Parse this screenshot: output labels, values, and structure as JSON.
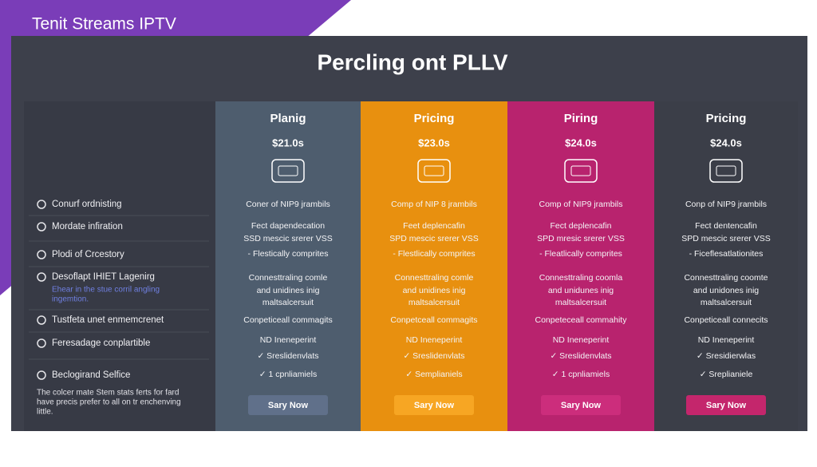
{
  "brand": "Tenit Streams IPTV",
  "title": "Percling ont PLLV",
  "features": [
    {
      "label": "Conurf ordnisting"
    },
    {
      "label": "Mordate infiration"
    },
    {
      "label": "Plodi of Crcestory"
    },
    {
      "label": "Desoflapt IHIET Lagenirg",
      "note": [
        "Ehear in the stue corril angling",
        "ingemtion."
      ]
    },
    {
      "label": "Tustfeta unet enmemcrenet"
    },
    {
      "label": "Feresadage conplartible"
    },
    {
      "label": "Beclogirand Selfice",
      "note": [
        "The colcer mate Stem stats ferts for fard",
        "have precis prefer to all on tr enchenving",
        "little."
      ]
    }
  ],
  "plans": [
    {
      "name": "Planig",
      "price": "$21.0s",
      "lines": [
        "Coner of NIP9 jrambils",
        "Fect dapendecation",
        "SSD mescic srerer VSS",
        "- Flestically comprites",
        "Connesttraling comle",
        "and unidines inig",
        "maltsalcersuit",
        "Conpeticeall commagits",
        "ND Ineneperint",
        "✓ Sreslidenvlats",
        "✓ 1 cpnliamiels"
      ],
      "button": "Sary Now"
    },
    {
      "name": "Pricing",
      "price": "$23.0s",
      "lines": [
        "Comp of NIP 8 jrambils",
        "Feet deplencafin",
        "SPD mescic srerer VSS",
        "- Flestlically comprites",
        "Connesttraling comle",
        "and unidines inig",
        "maltsalcersuit",
        "Conpetceall commagits",
        "ND Ineneperint",
        "✓ Sreslidenvlats",
        "✓ Semplianiels"
      ],
      "button": "Sary Now"
    },
    {
      "name": "Piring",
      "price": "$24.0s",
      "lines": [
        "Comp of NIP9 jrambils",
        "Fect deplencafin",
        "SPD mresic srerer VSS",
        "- Fleatlically comprites",
        "Connesttraling coomla",
        "and unidunes inig",
        "maltsalcersuit",
        "Conpeteceall commahity",
        "ND Ineneperint",
        "✓ Sreslidenvlats",
        "✓ 1 cpnliamiels"
      ],
      "button": "Sary Now"
    },
    {
      "name": "Pricing",
      "price": "$24.0s",
      "lines": [
        "Conp of NIP9 jrambils",
        "Fect dentencafin",
        "SPD mescic srerer VSS",
        "- Ficeflesatlationites",
        "Connesttraling coomte",
        "and unidones inig",
        "maltsalcersuit",
        "Conpeticeall connecits",
        "ND Ineneperint",
        "✓ Sresidierwlas",
        "✓ Sreplianiele"
      ],
      "button": "Sary Now"
    }
  ]
}
